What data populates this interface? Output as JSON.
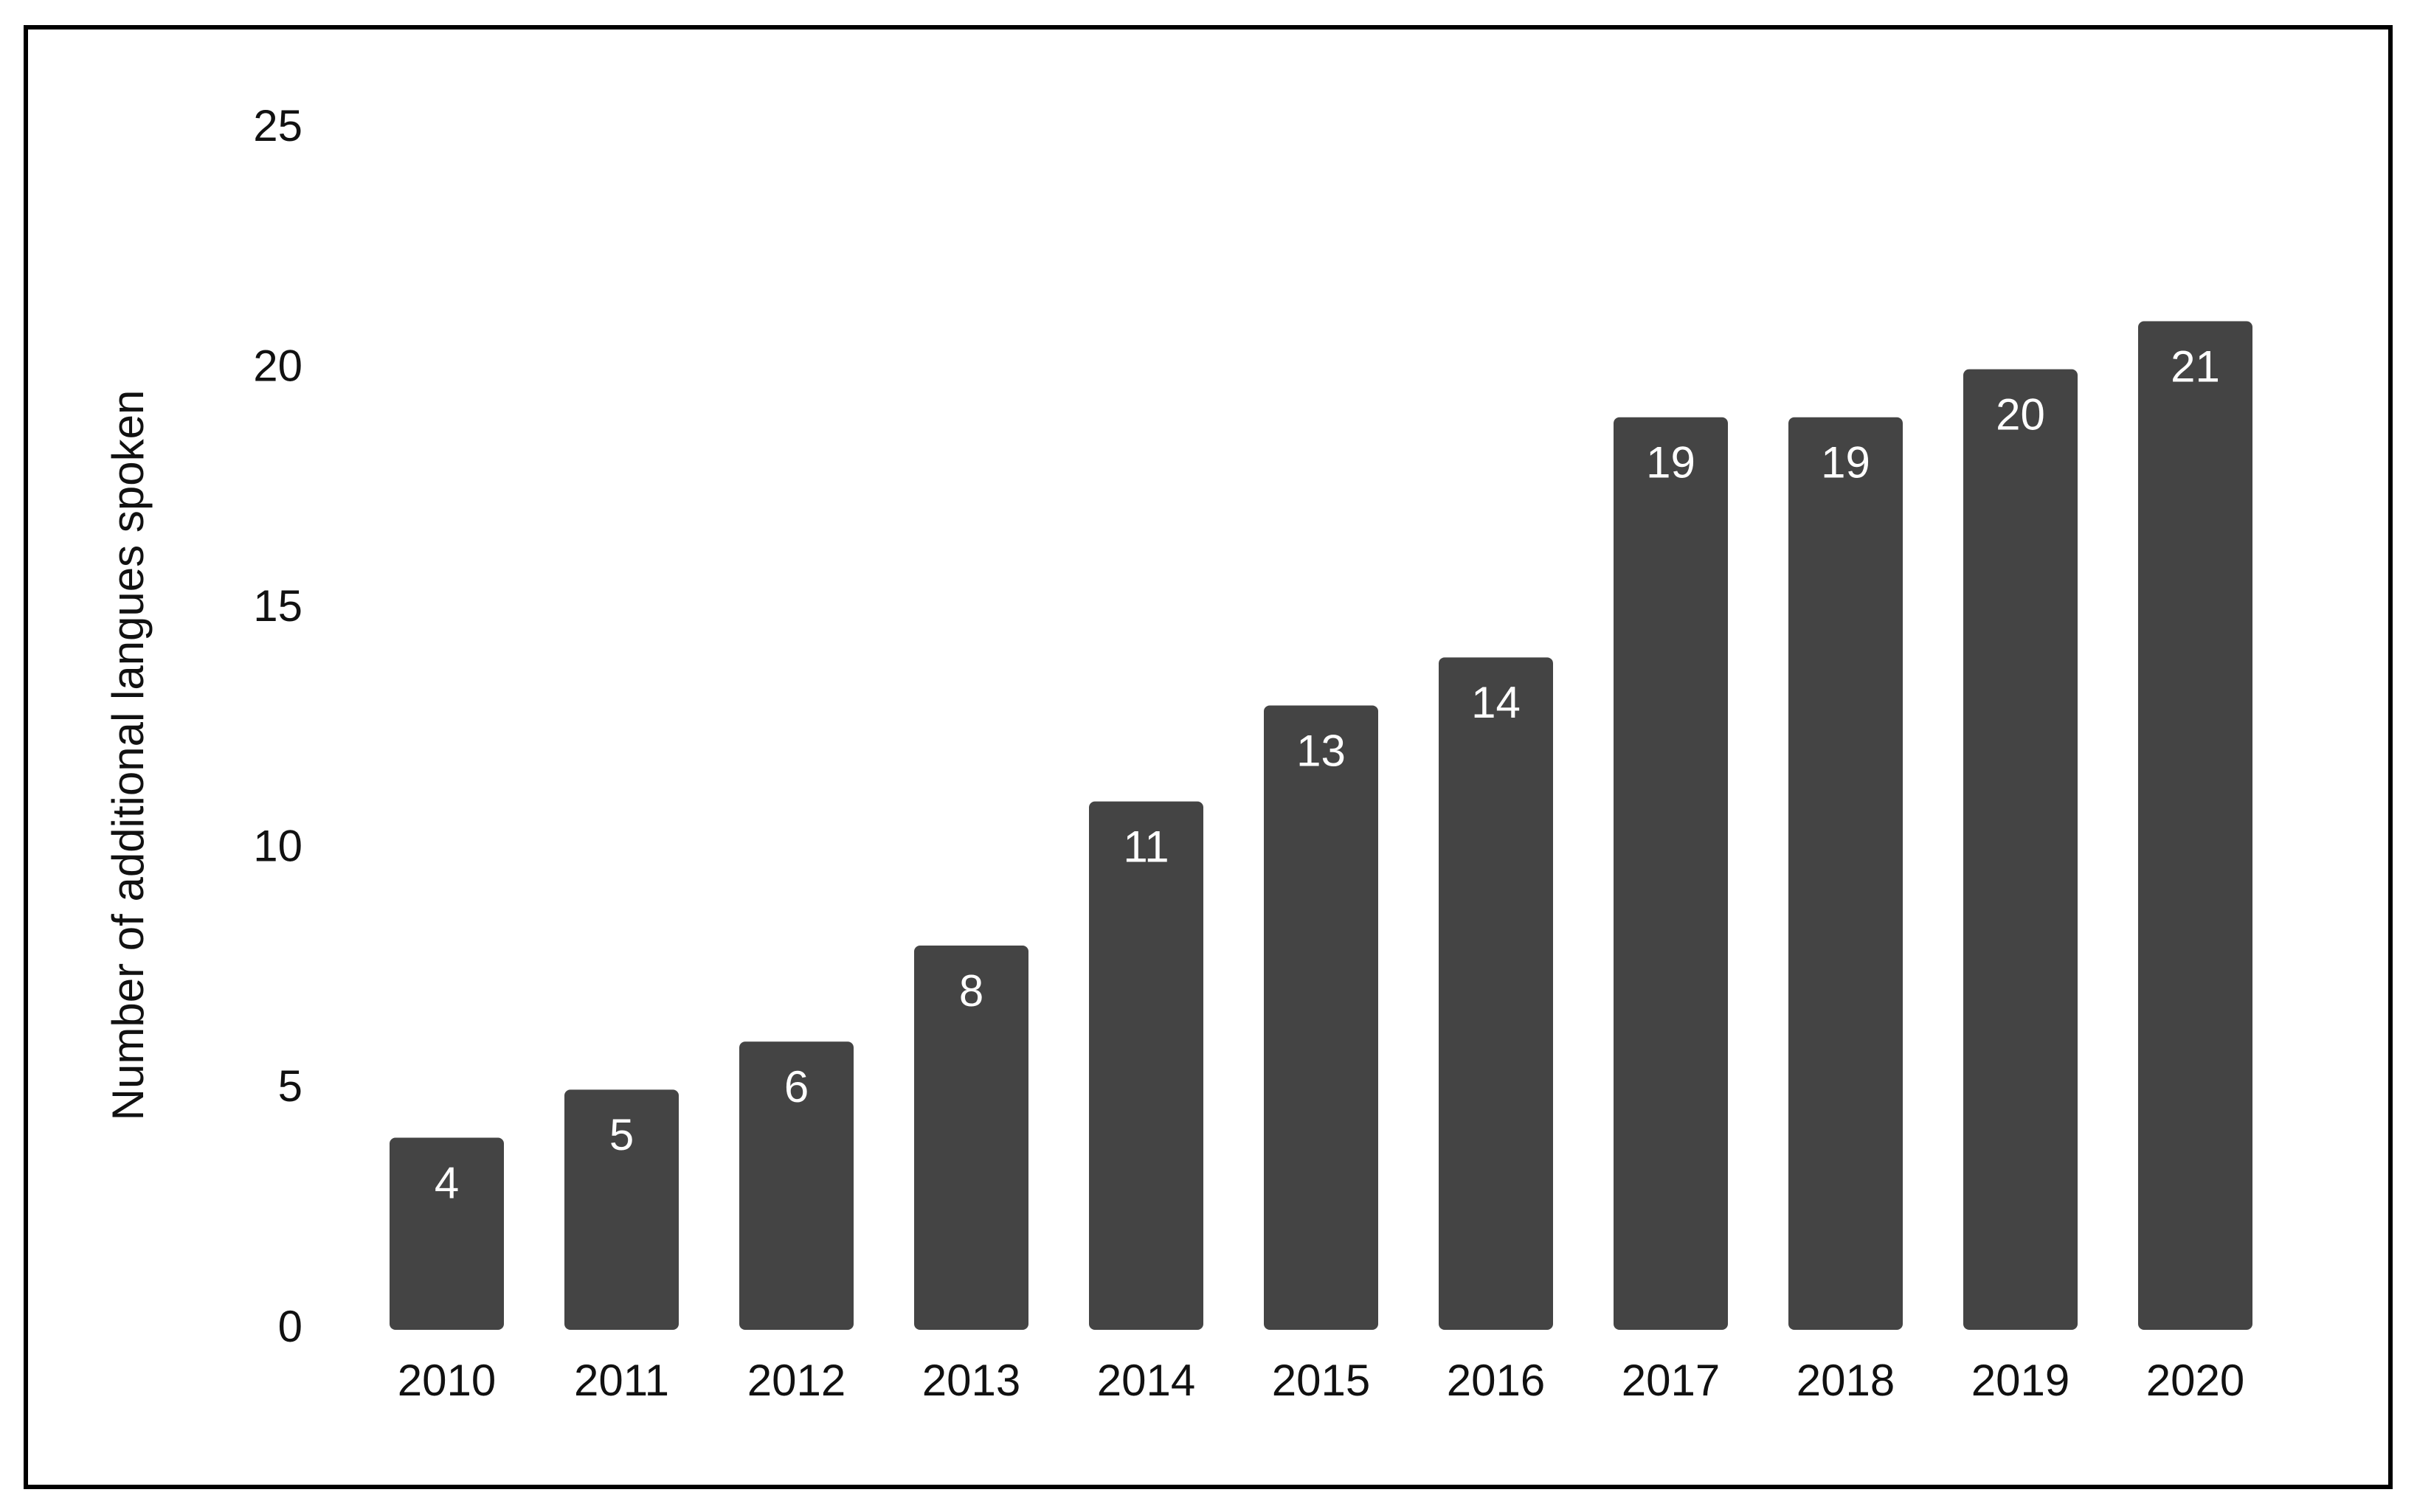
{
  "chart_data": {
    "type": "bar",
    "ylabel": "Number of additional langues spoken",
    "categories": [
      "2010",
      "2011",
      "2012",
      "2013",
      "2014",
      "2015",
      "2016",
      "2017",
      "2018",
      "2019",
      "2020"
    ],
    "values": [
      4,
      5,
      6,
      8,
      11,
      13,
      14,
      19,
      19,
      20,
      21
    ],
    "color": "#444444",
    "ylim": [
      0,
      25
    ],
    "yticks": [
      0,
      5,
      10,
      15,
      20,
      25
    ],
    "grid": false,
    "data_labels": true
  }
}
